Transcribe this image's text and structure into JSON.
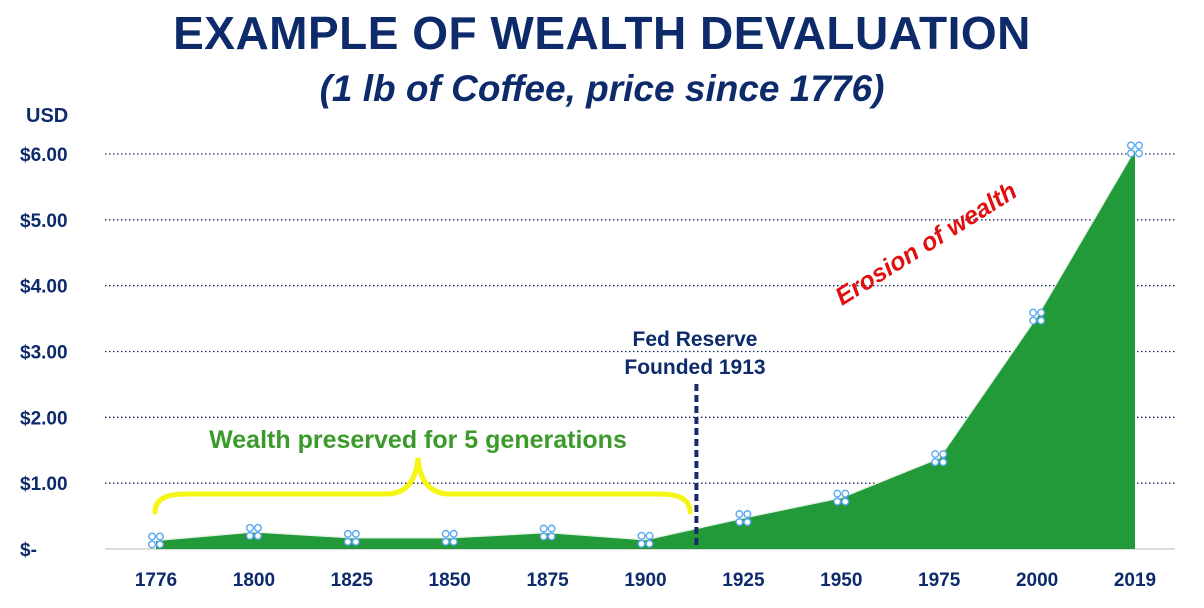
{
  "chart_data": {
    "type": "area",
    "title": "EXAMPLE OF WEALTH DEVALUATION",
    "subtitle": "(1 lb of Coffee, price since 1776)",
    "ylabel": "USD",
    "categories": [
      "1776",
      "1800",
      "1825",
      "1850",
      "1875",
      "1900",
      "1925",
      "1950",
      "1975",
      "2000",
      "2019"
    ],
    "series": [
      {
        "name": "Price of 1 lb of Coffee (USD)",
        "values": [
          0.13,
          0.26,
          0.17,
          0.17,
          0.25,
          0.14,
          0.47,
          0.78,
          1.38,
          3.53,
          6.07
        ]
      }
    ],
    "ylim": [
      0,
      6
    ],
    "yticks": [
      {
        "value": 0,
        "label": "$-"
      },
      {
        "value": 1,
        "label": "$1.00"
      },
      {
        "value": 2,
        "label": "$2.00"
      },
      {
        "value": 3,
        "label": "$3.00"
      },
      {
        "value": 4,
        "label": "$4.00"
      },
      {
        "value": 5,
        "label": "$5.00"
      },
      {
        "value": 6,
        "label": "$6.00"
      }
    ],
    "grid": true,
    "fed_marker_year": 1913,
    "annotations": {
      "fed_line1": "Fed Reserve",
      "fed_line2": "Founded 1913",
      "preserved": "Wealth preserved for 5 generations",
      "erosion": "Erosion of wealth"
    },
    "colors": {
      "area": "#229a3a",
      "title": "#0d2a6b",
      "preserved_text": "#3a9a2a",
      "brace": "#f5f516",
      "erosion_text": "#e01010",
      "marker": "#5aa8f0",
      "grid": "#1a2a66"
    }
  }
}
